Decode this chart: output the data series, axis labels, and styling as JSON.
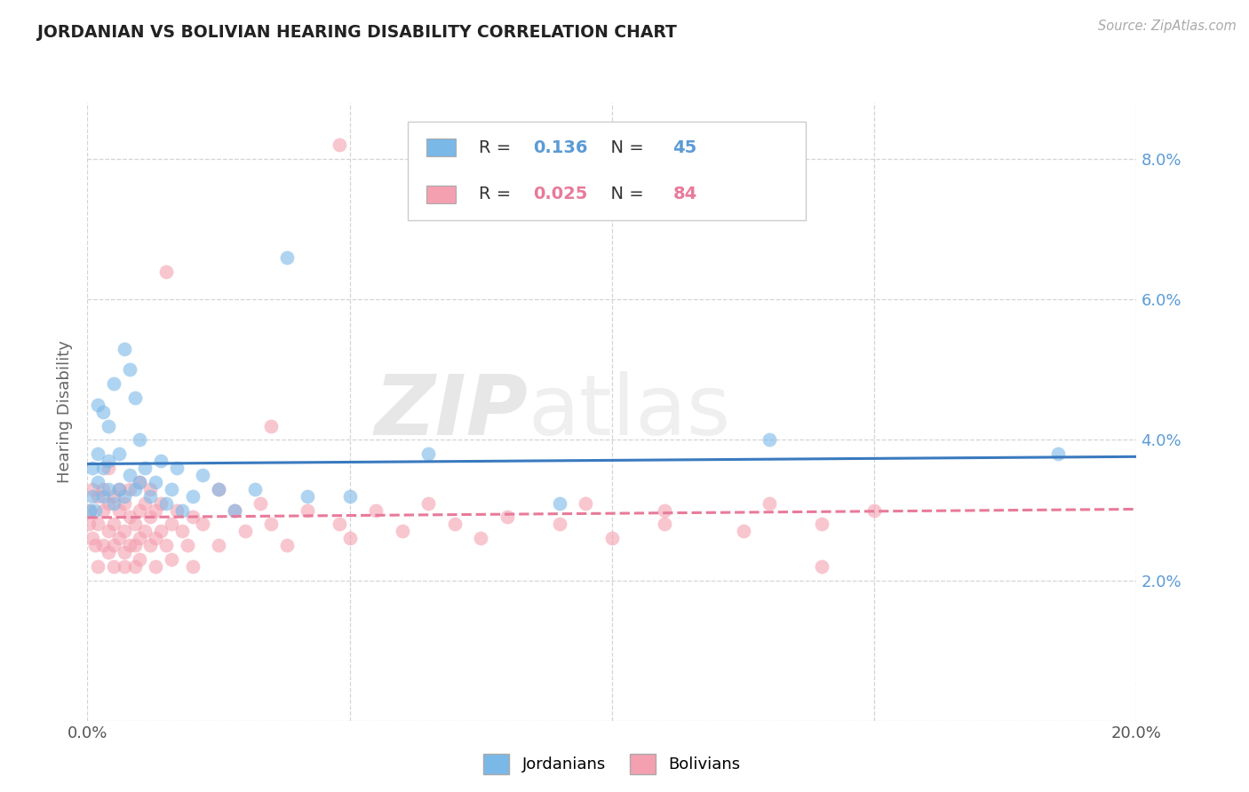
{
  "title": "JORDANIAN VS BOLIVIAN HEARING DISABILITY CORRELATION CHART",
  "source_text": "Source: ZipAtlas.com",
  "ylabel": "Hearing Disability",
  "xlim": [
    0.0,
    0.2
  ],
  "ylim": [
    0.0,
    0.088
  ],
  "x_ticks": [
    0.0,
    0.05,
    0.1,
    0.15,
    0.2
  ],
  "x_tick_labels": [
    "0.0%",
    "",
    "",
    "",
    "20.0%"
  ],
  "y_ticks": [
    0.0,
    0.02,
    0.04,
    0.06,
    0.08
  ],
  "y_tick_labels_right": [
    "",
    "2.0%",
    "4.0%",
    "6.0%",
    "8.0%"
  ],
  "jordanians_color": "#7ab8e8",
  "bolivians_color": "#f4a0b0",
  "jordanians_line_color": "#3a7abf",
  "bolivians_line_color": "#e87a9a",
  "R_jordanians": "0.136",
  "N_jordanians": "45",
  "R_bolivians": "0.025",
  "N_bolivians": "84",
  "jordanians_x": [
    0.0005,
    0.001,
    0.001,
    0.0015,
    0.002,
    0.002,
    0.002,
    0.003,
    0.003,
    0.003,
    0.004,
    0.004,
    0.004,
    0.005,
    0.005,
    0.006,
    0.006,
    0.007,
    0.007,
    0.008,
    0.008,
    0.009,
    0.009,
    0.01,
    0.01,
    0.011,
    0.012,
    0.013,
    0.014,
    0.015,
    0.016,
    0.017,
    0.018,
    0.02,
    0.022,
    0.025,
    0.028,
    0.032,
    0.038,
    0.042,
    0.05,
    0.065,
    0.09,
    0.13,
    0.185
  ],
  "jordanians_y": [
    0.03,
    0.032,
    0.036,
    0.03,
    0.034,
    0.038,
    0.045,
    0.032,
    0.036,
    0.044,
    0.033,
    0.037,
    0.042,
    0.031,
    0.048,
    0.033,
    0.038,
    0.032,
    0.053,
    0.035,
    0.05,
    0.033,
    0.046,
    0.034,
    0.04,
    0.036,
    0.032,
    0.034,
    0.037,
    0.031,
    0.033,
    0.036,
    0.03,
    0.032,
    0.035,
    0.033,
    0.03,
    0.033,
    0.066,
    0.032,
    0.032,
    0.038,
    0.031,
    0.04,
    0.038
  ],
  "bolivians_x": [
    0.0003,
    0.0005,
    0.001,
    0.001,
    0.0015,
    0.002,
    0.002,
    0.002,
    0.003,
    0.003,
    0.003,
    0.004,
    0.004,
    0.004,
    0.004,
    0.005,
    0.005,
    0.005,
    0.005,
    0.006,
    0.006,
    0.006,
    0.007,
    0.007,
    0.007,
    0.007,
    0.008,
    0.008,
    0.008,
    0.009,
    0.009,
    0.009,
    0.01,
    0.01,
    0.01,
    0.01,
    0.011,
    0.011,
    0.012,
    0.012,
    0.012,
    0.013,
    0.013,
    0.013,
    0.014,
    0.014,
    0.015,
    0.015,
    0.016,
    0.016,
    0.017,
    0.018,
    0.019,
    0.02,
    0.02,
    0.022,
    0.025,
    0.025,
    0.028,
    0.03,
    0.033,
    0.035,
    0.038,
    0.042,
    0.048,
    0.05,
    0.055,
    0.06,
    0.065,
    0.07,
    0.075,
    0.08,
    0.09,
    0.095,
    0.1,
    0.11,
    0.125,
    0.13,
    0.14,
    0.15,
    0.035,
    0.048,
    0.11,
    0.14
  ],
  "bolivians_y": [
    0.028,
    0.03,
    0.026,
    0.033,
    0.025,
    0.022,
    0.028,
    0.032,
    0.025,
    0.03,
    0.033,
    0.024,
    0.027,
    0.031,
    0.036,
    0.025,
    0.028,
    0.032,
    0.022,
    0.026,
    0.03,
    0.033,
    0.024,
    0.027,
    0.031,
    0.022,
    0.025,
    0.029,
    0.033,
    0.025,
    0.028,
    0.022,
    0.026,
    0.03,
    0.034,
    0.023,
    0.027,
    0.031,
    0.025,
    0.029,
    0.033,
    0.026,
    0.03,
    0.022,
    0.027,
    0.031,
    0.025,
    0.064,
    0.028,
    0.023,
    0.03,
    0.027,
    0.025,
    0.029,
    0.022,
    0.028,
    0.033,
    0.025,
    0.03,
    0.027,
    0.031,
    0.028,
    0.025,
    0.03,
    0.028,
    0.026,
    0.03,
    0.027,
    0.031,
    0.028,
    0.026,
    0.029,
    0.028,
    0.031,
    0.026,
    0.03,
    0.027,
    0.031,
    0.028,
    0.03,
    0.042,
    0.082,
    0.028,
    0.022
  ],
  "background_color": "#ffffff",
  "grid_color": "#d0d0d0",
  "watermark_zip": "ZIP",
  "watermark_atlas": "atlas",
  "watermark_color": "#e8e8e8"
}
